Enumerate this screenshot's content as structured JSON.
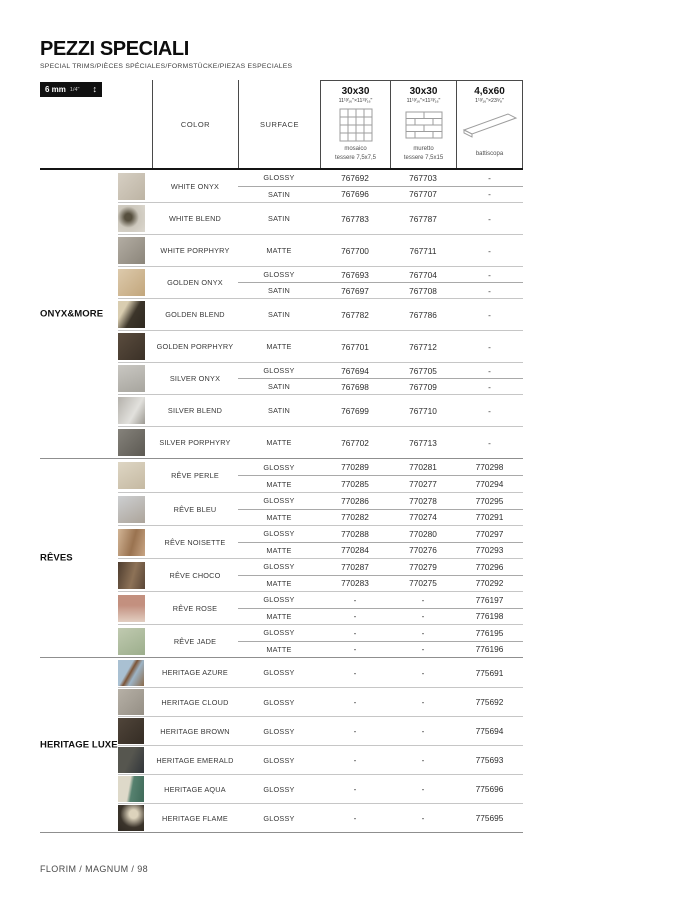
{
  "page": {
    "title": "PEZZI SPECIALI",
    "subtitle": "SPECIAL TRIMS/PIÈCES SPÉCIALES/FORMSTÜCKE/PIEZAS ESPECIALES",
    "badge": {
      "mm": "6 mm",
      "inch": "1/4\"",
      "arrow_icon": "↕"
    },
    "footer": "FLORIM / MAGNUM / 98"
  },
  "table": {
    "headers": {
      "color": "COLOR",
      "surface": "SURFACE",
      "sizes": [
        {
          "size": "30x30",
          "inches": "11¹³⁄₁₆\"×11¹³⁄₁₆\"",
          "icon": "mosaico-grid-icon",
          "caption_line1": "mosaico",
          "caption_line2": "tessere 7,5x7,5"
        },
        {
          "size": "30x30",
          "inches": "11¹³⁄₁₆\"×11¹³⁄₁₆\"",
          "icon": "muretto-brick-icon",
          "caption_line1": "muretto",
          "caption_line2": "tessere 7,5x15"
        },
        {
          "size": "4,6x60",
          "inches": "1¹³⁄₁₆\"×23⁵⁄₈\"",
          "icon": "battiscopa-icon",
          "caption_line1": "battiscopa",
          "caption_line2": ""
        }
      ]
    },
    "groups": [
      {
        "name": "ONYX&MORE",
        "rows": [
          {
            "color": "WHITE ONYX",
            "swatch": "linear-gradient(135deg,#d6cfc3,#bdb4a4)",
            "finishes": [
              {
                "surface": "GLOSSY",
                "codes": [
                  "767692",
                  "767703",
                  "-"
                ]
              },
              {
                "surface": "SATIN",
                "codes": [
                  "767696",
                  "767707",
                  "-"
                ]
              }
            ]
          },
          {
            "color": "WHITE BLEND",
            "swatch": "radial-gradient(circle at 38% 45%,#57503f 16%,#cdc8bd 48%,#dcd8cf 100%)",
            "finishes": [
              {
                "surface": "SATIN",
                "codes": [
                  "767783",
                  "767787",
                  "-"
                ]
              }
            ]
          },
          {
            "color": "WHITE PORPHYRY",
            "swatch": "linear-gradient(135deg,#b3ada3,#8b857a)",
            "finishes": [
              {
                "surface": "MATTE",
                "codes": [
                  "767700",
                  "767711",
                  "-"
                ]
              }
            ]
          },
          {
            "color": "GOLDEN ONYX",
            "swatch": "linear-gradient(135deg,#ddcaac,#c2a67c)",
            "finishes": [
              {
                "surface": "GLOSSY",
                "codes": [
                  "767693",
                  "767704",
                  "-"
                ]
              },
              {
                "surface": "SATIN",
                "codes": [
                  "767697",
                  "767708",
                  "-"
                ]
              }
            ]
          },
          {
            "color": "GOLDEN BLEND",
            "swatch": "linear-gradient(120deg,#d9cdb0 25%,#3c352a 55%,#2e2820 100%)",
            "finishes": [
              {
                "surface": "SATIN",
                "codes": [
                  "767782",
                  "767786",
                  "-"
                ]
              }
            ]
          },
          {
            "color": "GOLDEN PORPHYRY",
            "swatch": "linear-gradient(135deg,#5a4c3e,#3b3127)",
            "finishes": [
              {
                "surface": "MATTE",
                "codes": [
                  "767701",
                  "767712",
                  "-"
                ]
              }
            ]
          },
          {
            "color": "SILVER ONYX",
            "swatch": "linear-gradient(160deg,#c9c7c2,#a7a59e)",
            "finishes": [
              {
                "surface": "GLOSSY",
                "codes": [
                  "767694",
                  "767705",
                  "-"
                ]
              },
              {
                "surface": "SATIN",
                "codes": [
                  "767698",
                  "767709",
                  "-"
                ]
              }
            ]
          },
          {
            "color": "SILVER BLEND",
            "swatch": "linear-gradient(120deg,#b4b1ab,#e2e1dd 60%,#9c9992)",
            "finishes": [
              {
                "surface": "SATIN",
                "codes": [
                  "767699",
                  "767710",
                  "-"
                ]
              }
            ]
          },
          {
            "color": "SILVER PORPHYRY",
            "swatch": "linear-gradient(135deg,#85827b,#5c5952)",
            "finishes": [
              {
                "surface": "MATTE",
                "codes": [
                  "767702",
                  "767713",
                  "-"
                ]
              }
            ]
          }
        ]
      },
      {
        "name": "RÊVES",
        "rows": [
          {
            "color": "RÊVE PERLE",
            "swatch": "linear-gradient(150deg,#ded6c4,#c5b9a2)",
            "finishes": [
              {
                "surface": "GLOSSY",
                "codes": [
                  "770289",
                  "770281",
                  "770298"
                ]
              },
              {
                "surface": "MATTE",
                "codes": [
                  "770285",
                  "770277",
                  "770294"
                ]
              }
            ]
          },
          {
            "color": "RÊVE BLEU",
            "swatch": "linear-gradient(150deg,#cdcfd1,#aca49a)",
            "finishes": [
              {
                "surface": "GLOSSY",
                "codes": [
                  "770286",
                  "770278",
                  "770295"
                ]
              },
              {
                "surface": "MATTE",
                "codes": [
                  "770282",
                  "770274",
                  "770291"
                ]
              }
            ]
          },
          {
            "color": "RÊVE NOISETTE",
            "swatch": "linear-gradient(105deg,#d2b596,#9a7350 55%,#c8a584)",
            "finishes": [
              {
                "surface": "GLOSSY",
                "codes": [
                  "770288",
                  "770280",
                  "770297"
                ]
              },
              {
                "surface": "MATTE",
                "codes": [
                  "770284",
                  "770276",
                  "770293"
                ]
              }
            ]
          },
          {
            "color": "RÊVE CHOCO",
            "swatch": "linear-gradient(105deg,#4e3d2f,#8d7257 55%,#5a4636)",
            "finishes": [
              {
                "surface": "GLOSSY",
                "codes": [
                  "770287",
                  "770279",
                  "770296"
                ]
              },
              {
                "surface": "MATTE",
                "codes": [
                  "770283",
                  "770275",
                  "770292"
                ]
              }
            ]
          },
          {
            "color": "RÊVE ROSE",
            "swatch": "linear-gradient(180deg,#c3907f 38%,#e2cec1)",
            "finishes": [
              {
                "surface": "GLOSSY",
                "codes": [
                  "-",
                  "-",
                  "776197"
                ]
              },
              {
                "surface": "MATTE",
                "codes": [
                  "-",
                  "-",
                  "776198"
                ]
              }
            ]
          },
          {
            "color": "RÊVE JADE",
            "swatch": "linear-gradient(150deg,#c0cab0,#9cae8c)",
            "finishes": [
              {
                "surface": "GLOSSY",
                "codes": [
                  "-",
                  "-",
                  "776195"
                ]
              },
              {
                "surface": "MATTE",
                "codes": [
                  "-",
                  "-",
                  "776196"
                ]
              }
            ]
          }
        ]
      },
      {
        "name": "HERITAGE LUXE",
        "rows": [
          {
            "color": "HERITAGE AZURE",
            "swatch": "linear-gradient(120deg,#a9c0d2 38%,#7c5436 48%,#9db4c6 62%,#8a6a4a)",
            "finishes": [
              {
                "surface": "GLOSSY",
                "codes": [
                  "-",
                  "-",
                  "775691"
                ]
              }
            ]
          },
          {
            "color": "HERITAGE CLOUD",
            "swatch": "linear-gradient(135deg,#b6b0a6,#958f85)",
            "finishes": [
              {
                "surface": "GLOSSY",
                "codes": [
                  "-",
                  "-",
                  "775692"
                ]
              }
            ]
          },
          {
            "color": "HERITAGE BROWN",
            "swatch": "linear-gradient(135deg,#50453a,#342c24)",
            "finishes": [
              {
                "surface": "GLOSSY",
                "codes": [
                  "-",
                  "-",
                  "775694"
                ]
              }
            ]
          },
          {
            "color": "HERITAGE EMERALD",
            "swatch": "linear-gradient(115deg,#56564f 45%,#31353a)",
            "finishes": [
              {
                "surface": "GLOSSY",
                "codes": [
                  "-",
                  "-",
                  "775693"
                ]
              }
            ]
          },
          {
            "color": "HERITAGE AQUA",
            "swatch": "linear-gradient(100deg,#ded9c9 42%,#56816f 54%,#3f6a59)",
            "finishes": [
              {
                "surface": "GLOSSY",
                "codes": [
                  "-",
                  "-",
                  "775696"
                ]
              }
            ]
          },
          {
            "color": "HERITAGE FLAME",
            "swatch": "radial-gradient(circle at 60% 35%,#ddd3bc 18%,#3b342b 58%,#2f2922)",
            "finishes": [
              {
                "surface": "GLOSSY",
                "codes": [
                  "-",
                  "-",
                  "775695"
                ]
              }
            ]
          }
        ]
      }
    ]
  }
}
